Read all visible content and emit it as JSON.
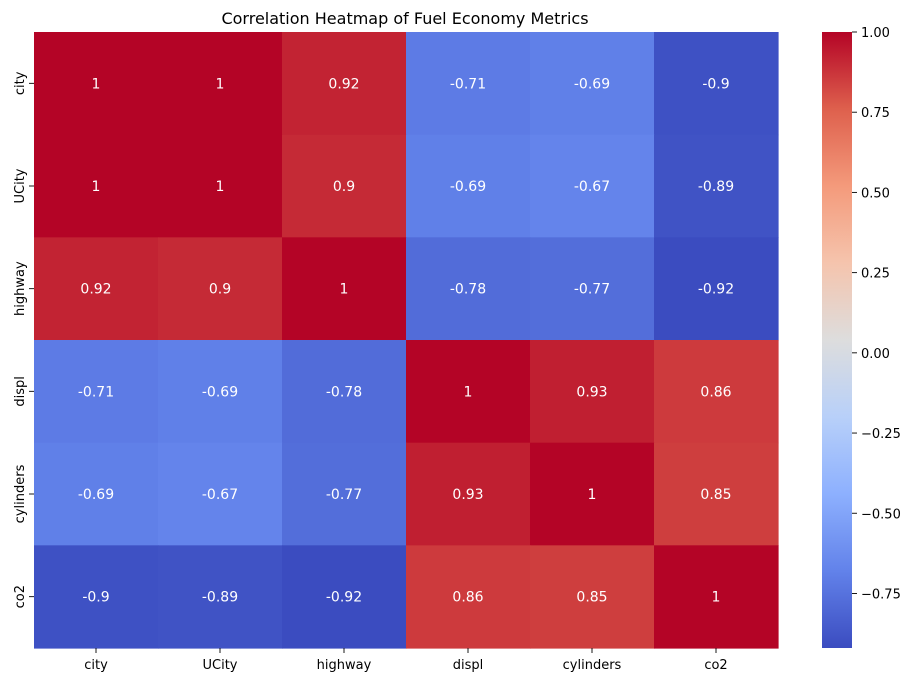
{
  "chart_data": {
    "type": "heatmap",
    "title": "Correlation Heatmap of Fuel Economy Metrics",
    "xlabel": "",
    "ylabel": "",
    "x_categories": [
      "city",
      "UCity",
      "highway",
      "displ",
      "cylinders",
      "co2"
    ],
    "y_categories": [
      "city",
      "UCity",
      "highway",
      "displ",
      "cylinders",
      "co2"
    ],
    "values": [
      [
        1,
        1,
        0.92,
        -0.71,
        -0.69,
        -0.9
      ],
      [
        1,
        1,
        0.9,
        -0.69,
        -0.67,
        -0.89
      ],
      [
        0.92,
        0.9,
        1,
        -0.78,
        -0.77,
        -0.92
      ],
      [
        -0.71,
        -0.69,
        -0.78,
        1,
        0.93,
        0.86
      ],
      [
        -0.69,
        -0.67,
        -0.77,
        0.93,
        1,
        0.85
      ],
      [
        -0.9,
        -0.89,
        -0.92,
        0.86,
        0.85,
        1
      ]
    ],
    "annotations": [
      [
        "1",
        "1",
        "0.92",
        "-0.71",
        "-0.69",
        "-0.9"
      ],
      [
        "1",
        "1",
        "0.9",
        "-0.69",
        "-0.67",
        "-0.89"
      ],
      [
        "0.92",
        "0.9",
        "1",
        "-0.78",
        "-0.77",
        "-0.92"
      ],
      [
        "-0.71",
        "-0.69",
        "-0.78",
        "1",
        "0.93",
        "0.86"
      ],
      [
        "-0.69",
        "-0.67",
        "-0.77",
        "0.93",
        "1",
        "0.85"
      ],
      [
        "-0.9",
        "-0.89",
        "-0.92",
        "0.86",
        "0.85",
        "1"
      ]
    ],
    "colormap": "coolwarm",
    "vmin": -0.92,
    "vmax": 1,
    "colorbar": {
      "ticks": [
        1.0,
        0.75,
        0.5,
        0.25,
        0.0,
        -0.25,
        -0.5,
        -0.75
      ],
      "tick_labels": [
        "1.00",
        "0.75",
        "0.50",
        "0.25",
        "0.00",
        "−0.25",
        "−0.50",
        "−0.75"
      ]
    },
    "grid": false,
    "legend": "colorbar-right",
    "colors": {
      "low": "#3b4cc0",
      "mid": "#dddddd",
      "high": "#b40426",
      "annotation_text": "#ffffff"
    }
  }
}
